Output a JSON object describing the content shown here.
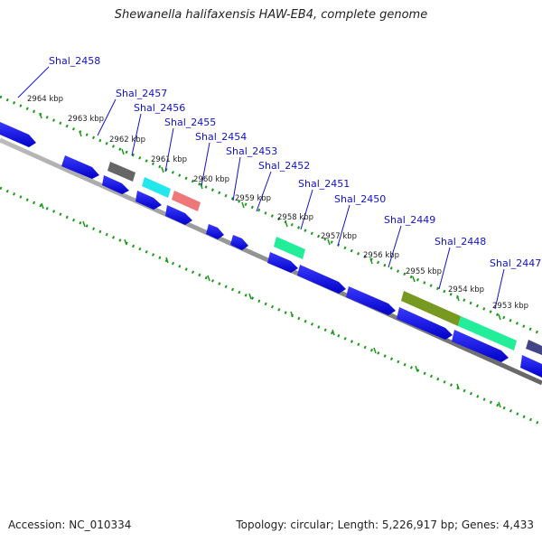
{
  "title": "Shewanella halifaxensis HAW-EB4, complete genome",
  "footer": {
    "accession": "Accession: NC_010334",
    "summary": "Topology: circular; Length: 5,226,917 bp; Genes: 4,433"
  },
  "ticks": [
    "2964 kbp",
    "2963 kbp",
    "2962 kbp",
    "2961 kbp",
    "2960 kbp",
    "2959 kbp",
    "2958 kbp",
    "2957 kbp",
    "2956 kbp",
    "2955 kbp",
    "2954 kbp",
    "2953 kbp"
  ],
  "gene_labels": [
    "Shal_2458",
    "Shal_2457",
    "Shal_2456",
    "Shal_2455",
    "Shal_2454",
    "Shal_2453",
    "Shal_2452",
    "Shal_2451",
    "Shal_2450",
    "Shal_2449",
    "Shal_2448",
    "Shal_2447"
  ],
  "colors": {
    "strand_gene": "#0a0aee",
    "highlight_gray": "#666666",
    "highlight_cyan": "#22e8ee",
    "highlight_red": "#ee7777",
    "highlight_teal": "#22ee99",
    "highlight_olive": "#779922",
    "highlight_purple": "#444488",
    "backbone": "#888888",
    "dotted_ring": "#1a9a1a",
    "label": "#1111cc"
  }
}
